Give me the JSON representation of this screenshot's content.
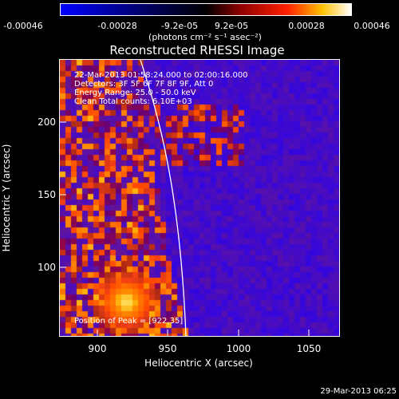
{
  "colorbar": {
    "tick_labels": [
      "-0.00046",
      "-0.00028",
      "-9.2e-05",
      "9.2e-05",
      "0.00028",
      "0.00046"
    ],
    "units_label": "(photons cm⁻² s⁻¹ asec⁻²)",
    "colors": [
      "#0000ff",
      "#000080",
      "#000000",
      "#800000",
      "#ff0000",
      "#ffff00",
      "#ffffff"
    ]
  },
  "plot": {
    "title": "Reconstructed RHESSI Image",
    "annotations": [
      "22-Mar-2013 01:58:24.000 to 02:00:16.000",
      "Detectors: 3F 5F 6F 7F 8F 9F, Att 0",
      "Energy Range: 25.0 - 50.0 keV",
      "Clean     Total counts: 6.10E+03"
    ],
    "peak_label": "Position of Peak = [922,35]",
    "xlabel": "Heliocentric X (arcsec)",
    "ylabel": "Heliocentric Y (arcsec)",
    "x_ticks": [
      "900",
      "950",
      "1000",
      "1050"
    ],
    "y_ticks": [
      "200",
      "150",
      "100"
    ],
    "xlim": [
      875,
      1068
    ],
    "ylim": [
      44,
      244
    ],
    "limb_color": "#ffffff"
  },
  "timestamp": "29-Mar-2013 06:25"
}
